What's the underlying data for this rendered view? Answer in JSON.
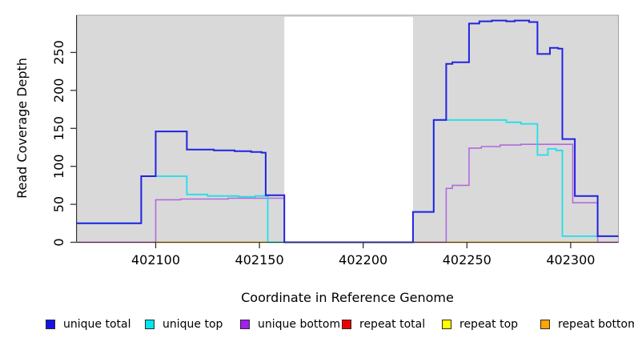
{
  "chart_data": {
    "type": "line",
    "step": true,
    "title": "",
    "xlabel": "Coordinate in Reference Genome",
    "ylabel": "Read Coverage Depth",
    "xlim": [
      402062,
      402323
    ],
    "ylim": [
      0,
      299
    ],
    "x_ticks": [
      402100,
      402150,
      402200,
      402250,
      402300
    ],
    "y_ticks": [
      0,
      50,
      100,
      150,
      200,
      250
    ],
    "grid": false,
    "background": {
      "panel_color": "#d9d9d9",
      "panel_border_color": "#a0a0a0",
      "gap_region": {
        "from": 402162,
        "to": 402224,
        "color": "#ffffff"
      }
    },
    "series": [
      {
        "name": "repeat total",
        "color": "#ee1122",
        "width": 1.2,
        "points": [
          [
            402062,
            0
          ]
        ],
        "end": 402323
      },
      {
        "name": "repeat top",
        "color": "#ffff00",
        "width": 1.2,
        "points": [
          [
            402100,
            0
          ]
        ],
        "end": 402313
      },
      {
        "name": "repeat bottom",
        "color": "#ffa500",
        "width": 1.6,
        "points": [
          [
            402100,
            0
          ]
        ],
        "end": 402313
      },
      {
        "name": "unique bottom",
        "color": "#b06ae0",
        "width": 1.6,
        "points": [
          [
            402062,
            0
          ],
          [
            402100,
            56
          ],
          [
            402112,
            57
          ],
          [
            402135,
            58
          ],
          [
            402150,
            58
          ],
          [
            402162,
            0
          ],
          [
            402240,
            71
          ],
          [
            402243,
            75
          ],
          [
            402251,
            124
          ],
          [
            402257,
            126
          ],
          [
            402266,
            128
          ],
          [
            402276,
            129
          ],
          [
            402301,
            52
          ],
          [
            402313,
            0
          ]
        ],
        "end": 402323
      },
      {
        "name": "unique top",
        "color": "#1edfe8",
        "width": 1.8,
        "points": [
          [
            402062,
            25
          ],
          [
            402093,
            87
          ],
          [
            402115,
            63
          ],
          [
            402125,
            61
          ],
          [
            402140,
            60
          ],
          [
            402148,
            61
          ],
          [
            402154,
            0
          ],
          [
            402224,
            40
          ],
          [
            402234,
            161
          ],
          [
            402269,
            158
          ],
          [
            402276,
            156
          ],
          [
            402284,
            115
          ],
          [
            402289,
            123
          ],
          [
            402293,
            121
          ],
          [
            402296,
            8
          ]
        ],
        "end": 402313
      },
      {
        "name": "unique total",
        "color": "#2222e2",
        "width": 2,
        "points": [
          [
            402062,
            25
          ],
          [
            402093,
            87
          ],
          [
            402100,
            146
          ],
          [
            402115,
            122
          ],
          [
            402128,
            121
          ],
          [
            402138,
            120
          ],
          [
            402146,
            119
          ],
          [
            402151,
            118
          ],
          [
            402153,
            62
          ],
          [
            402162,
            0
          ],
          [
            402224,
            40
          ],
          [
            402234,
            161
          ],
          [
            402240,
            235
          ],
          [
            402243,
            237
          ],
          [
            402251,
            288
          ],
          [
            402256,
            291
          ],
          [
            402262,
            292
          ],
          [
            402269,
            291
          ],
          [
            402273,
            292
          ],
          [
            402280,
            290
          ],
          [
            402284,
            248
          ],
          [
            402290,
            256
          ],
          [
            402294,
            255
          ],
          [
            402296,
            136
          ],
          [
            402302,
            61
          ],
          [
            402313,
            8
          ]
        ],
        "end": 402323
      }
    ],
    "legend": [
      {
        "label": "unique total",
        "color": "#1414e6"
      },
      {
        "label": "unique top",
        "color": "#00e5ee"
      },
      {
        "label": "unique bottom",
        "color": "#a020f0"
      },
      {
        "label": "repeat total",
        "color": "#ee0000"
      },
      {
        "label": "repeat top",
        "color": "#ffff00"
      },
      {
        "label": "repeat bottom",
        "color": "#ffa500"
      }
    ],
    "legend_position": "bottom"
  }
}
